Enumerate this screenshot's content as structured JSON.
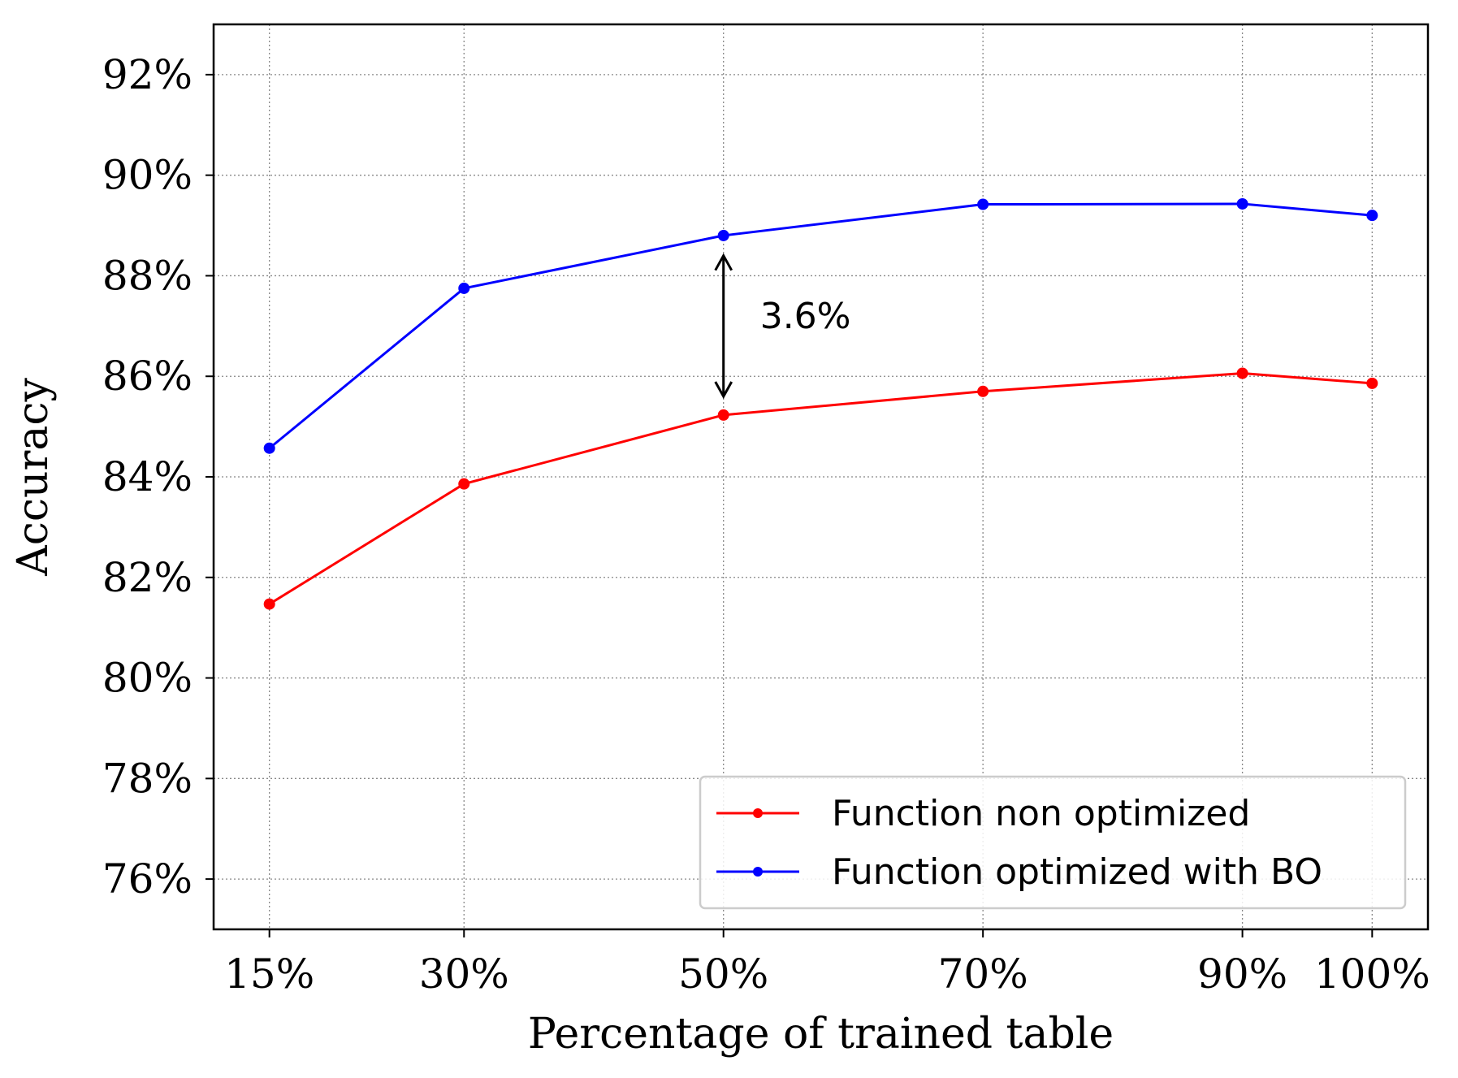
{
  "chart_data": {
    "type": "line",
    "title": "",
    "xlabel": "Percentage of trained table",
    "ylabel": "Accuracy",
    "x": [
      15,
      30,
      50,
      70,
      90,
      100
    ],
    "x_tick_labels": [
      "15%",
      "30%",
      "50%",
      "70%",
      "90%",
      "100%"
    ],
    "xlim": [
      10.7,
      104.3
    ],
    "ylim": [
      75.0,
      93.0
    ],
    "y_ticks": [
      76,
      78,
      80,
      82,
      84,
      86,
      88,
      90,
      92
    ],
    "y_tick_labels": [
      "76%",
      "78%",
      "80%",
      "82%",
      "84%",
      "86%",
      "88%",
      "90%",
      "92%"
    ],
    "grid": true,
    "legend_position": "lower-right",
    "series": [
      {
        "name": "Function non optimized",
        "color": "#ff0000",
        "values": [
          81.47,
          83.86,
          85.23,
          85.7,
          86.06,
          85.86
        ]
      },
      {
        "name": "Function optimized with BO",
        "color": "#0000ff",
        "values": [
          84.57,
          87.75,
          88.8,
          89.42,
          89.43,
          89.2
        ]
      }
    ],
    "annotation": {
      "text": "3.6%",
      "x": 50,
      "y_from": 85.6,
      "y_to": 88.4,
      "text_y": 87.2
    }
  }
}
